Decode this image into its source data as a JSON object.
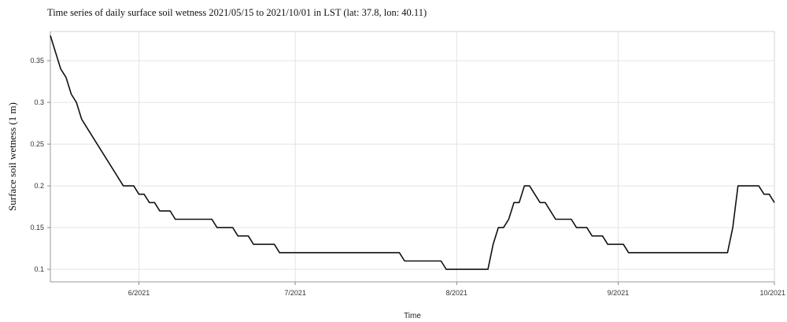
{
  "chart_data": {
    "type": "line",
    "title": "Time series of daily surface soil wetness 2021/05/15 to 2021/10/01 in LST (lat: 37.8, lon: 40.11)",
    "xlabel": "Time",
    "ylabel": "Surface soil wetness (1 m)",
    "xlim": [
      "2021-05-15",
      "2021-10-01"
    ],
    "ylim": [
      0.085,
      0.385
    ],
    "x_ticks": [
      {
        "date": "2021-06-01",
        "label": "6/2021"
      },
      {
        "date": "2021-07-01",
        "label": "7/2021"
      },
      {
        "date": "2021-08-01",
        "label": "8/2021"
      },
      {
        "date": "2021-09-01",
        "label": "9/2021"
      },
      {
        "date": "2021-10-01",
        "label": "10/2021"
      }
    ],
    "y_ticks": [
      {
        "value": 0.1,
        "label": "0.1"
      },
      {
        "value": 0.15,
        "label": "0.15"
      },
      {
        "value": 0.2,
        "label": "0.2"
      },
      {
        "value": 0.25,
        "label": "0.25"
      },
      {
        "value": 0.3,
        "label": "0.3"
      },
      {
        "value": 0.35,
        "label": "0.35"
      }
    ],
    "grid": true,
    "line_color": "#111111",
    "series": [
      {
        "x": [
          "2021-05-15",
          "2021-05-17",
          "2021-05-18",
          "2021-05-19",
          "2021-05-20",
          "2021-05-21",
          "2021-05-22",
          "2021-05-29",
          "2021-05-31",
          "2021-06-01",
          "2021-06-02",
          "2021-06-03",
          "2021-06-04",
          "2021-06-05",
          "2021-06-07",
          "2021-06-08",
          "2021-06-15",
          "2021-06-16",
          "2021-06-19",
          "2021-06-20",
          "2021-06-22",
          "2021-06-23",
          "2021-06-27",
          "2021-06-28",
          "2021-07-21",
          "2021-07-22",
          "2021-07-29",
          "2021-07-30",
          "2021-08-07",
          "2021-08-08",
          "2021-08-09",
          "2021-08-10",
          "2021-08-11",
          "2021-08-12",
          "2021-08-13",
          "2021-08-14",
          "2021-08-15",
          "2021-08-16",
          "2021-08-17",
          "2021-08-18",
          "2021-08-19",
          "2021-08-20",
          "2021-08-23",
          "2021-08-24",
          "2021-08-26",
          "2021-08-27",
          "2021-08-29",
          "2021-08-30",
          "2021-09-02",
          "2021-09-03",
          "2021-09-22",
          "2021-09-23",
          "2021-09-24",
          "2021-09-28",
          "2021-09-29",
          "2021-09-30",
          "2021-10-01"
        ],
        "y": [
          0.38,
          0.34,
          0.33,
          0.31,
          0.3,
          0.28,
          0.27,
          0.2,
          0.2,
          0.19,
          0.19,
          0.18,
          0.18,
          0.17,
          0.17,
          0.16,
          0.16,
          0.15,
          0.15,
          0.14,
          0.14,
          0.13,
          0.13,
          0.12,
          0.12,
          0.11,
          0.11,
          0.1,
          0.1,
          0.13,
          0.15,
          0.15,
          0.16,
          0.18,
          0.18,
          0.2,
          0.2,
          0.19,
          0.18,
          0.18,
          0.17,
          0.16,
          0.16,
          0.15,
          0.15,
          0.14,
          0.14,
          0.13,
          0.13,
          0.12,
          0.12,
          0.15,
          0.2,
          0.2,
          0.19,
          0.19,
          0.18
        ]
      }
    ]
  }
}
